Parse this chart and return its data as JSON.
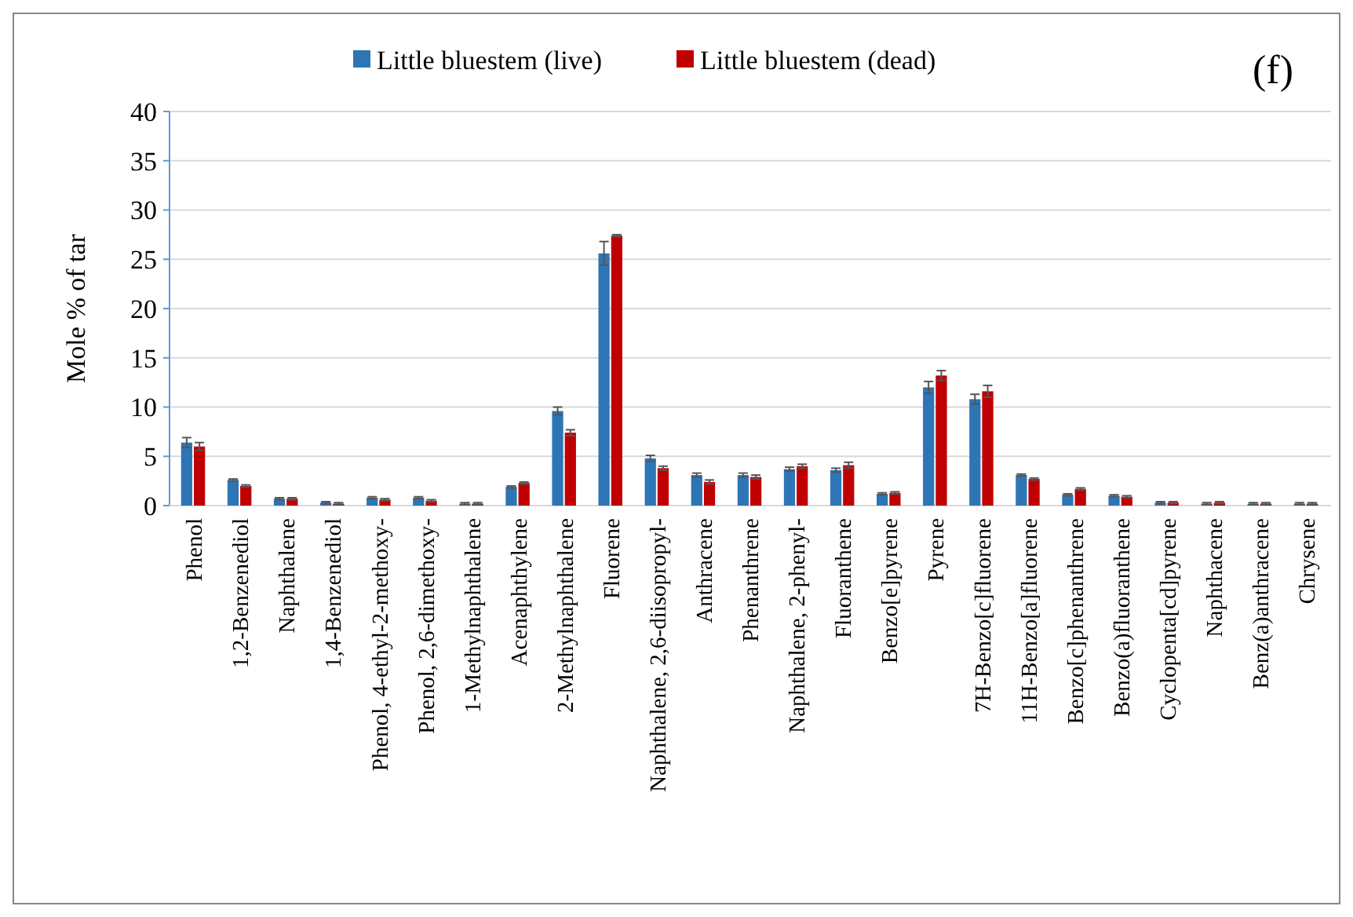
{
  "chart_data": {
    "type": "bar",
    "ylabel": "Mole % of tar",
    "annotations": [
      "(f)"
    ],
    "categories": [
      "Phenol",
      "1,2-Benzenediol",
      "Naphthalene",
      "1,4-Benzenediol",
      "Phenol, 4-ethyl-2-methoxy-",
      "Phenol, 2,6-dimethoxy-",
      "1-Methylnaphthalene",
      "Acenaphthylene",
      "2-Methylnaphthalene",
      "Fluorene",
      "Naphthalene, 2,6-diisopropyl-",
      "Anthracene",
      "Phenanthrene",
      "Naphthalene, 2-phenyl-",
      "Fluoranthene",
      "Benzo[e]pyrene",
      "Pyrene",
      "7H-Benzo[c]fluorene",
      "11H-Benzo[a]fluorene",
      "Benzo[c]phenanthrene",
      "Benzo(a)fluoranthene",
      "Cyclopenta[cd]pyrene",
      "Naphthacene",
      "Benz(a)anthracene",
      "Chrysene"
    ],
    "series": [
      {
        "name": "Little bluestem (live)",
        "color": "#2e75b6",
        "values": [
          6.4,
          2.6,
          0.7,
          0.3,
          0.8,
          0.8,
          0.2,
          1.9,
          9.6,
          25.6,
          4.8,
          3.1,
          3.1,
          3.7,
          3.6,
          1.2,
          12.0,
          10.8,
          3.1,
          1.1,
          1.0,
          0.3,
          0.2,
          0.2,
          0.2
        ],
        "errors": [
          0.5,
          0.1,
          0.1,
          0.1,
          0.1,
          0.1,
          0.1,
          0.1,
          0.4,
          1.2,
          0.3,
          0.2,
          0.2,
          0.2,
          0.2,
          0.1,
          0.6,
          0.5,
          0.1,
          0.1,
          0.1,
          0.1,
          0.1,
          0.1,
          0.1
        ]
      },
      {
        "name": "Little bluestem (dead)",
        "color": "#c00000",
        "values": [
          6.0,
          2.0,
          0.7,
          0.2,
          0.6,
          0.5,
          0.2,
          2.3,
          7.4,
          27.4,
          3.8,
          2.4,
          2.9,
          4.0,
          4.1,
          1.3,
          13.2,
          11.6,
          2.7,
          1.7,
          0.9,
          0.3,
          0.3,
          0.2,
          0.2
        ],
        "errors": [
          0.4,
          0.1,
          0.1,
          0.1,
          0.1,
          0.1,
          0.1,
          0.1,
          0.3,
          0.1,
          0.2,
          0.2,
          0.2,
          0.2,
          0.3,
          0.1,
          0.5,
          0.6,
          0.1,
          0.1,
          0.1,
          0.1,
          0.1,
          0.1,
          0.1
        ]
      }
    ],
    "ylim": [
      0,
      40
    ],
    "yticks": [
      0,
      5,
      10,
      15,
      20,
      25,
      30,
      35,
      40
    ],
    "grid": "y",
    "legend": "top"
  }
}
